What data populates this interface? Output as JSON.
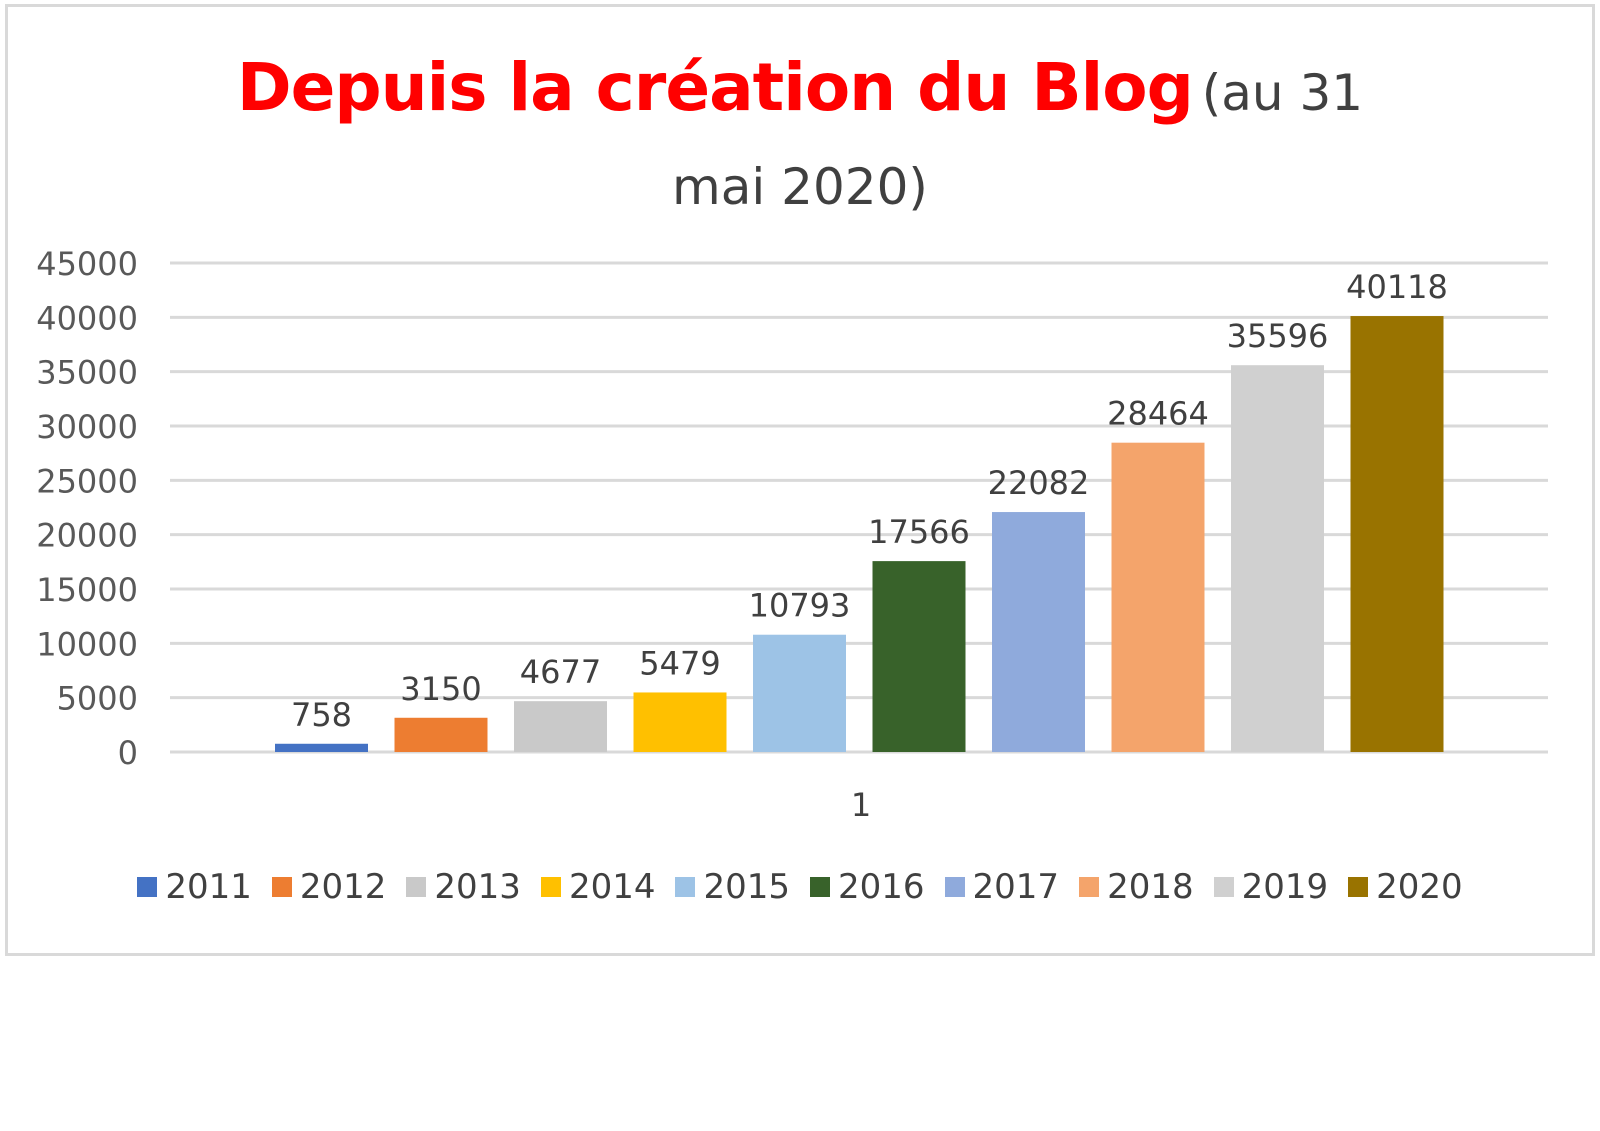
{
  "chart_data": {
    "type": "bar",
    "title": "Depuis la création du Blog",
    "subtitle": "(au 31 mai 2020)",
    "categories": [
      "1"
    ],
    "series": [
      {
        "name": "2011",
        "values": [
          758
        ],
        "color": "#4472c4"
      },
      {
        "name": "2012",
        "values": [
          3150
        ],
        "color": "#ed7d31"
      },
      {
        "name": "2013",
        "values": [
          4677
        ],
        "color": "#c9c9c9"
      },
      {
        "name": "2014",
        "values": [
          5479
        ],
        "color": "#ffc000"
      },
      {
        "name": "2015",
        "values": [
          10793
        ],
        "color": "#9dc3e6"
      },
      {
        "name": "2016",
        "values": [
          17566
        ],
        "color": "#38622a"
      },
      {
        "name": "2017",
        "values": [
          22082
        ],
        "color": "#8faadc"
      },
      {
        "name": "2018",
        "values": [
          28464
        ],
        "color": "#f4a46b"
      },
      {
        "name": "2019",
        "values": [
          35596
        ],
        "color": "#d0d0d0"
      },
      {
        "name": "2020",
        "values": [
          40118
        ],
        "color": "#997300"
      }
    ],
    "yticks": [
      "0",
      "5000",
      "10000",
      "15000",
      "20000",
      "25000",
      "30000",
      "35000",
      "40000",
      "45000"
    ],
    "ylim": [
      0,
      45000
    ],
    "xlabel": "",
    "ylabel": "",
    "grid": true,
    "legend_position": "bottom",
    "data_labels": true
  }
}
